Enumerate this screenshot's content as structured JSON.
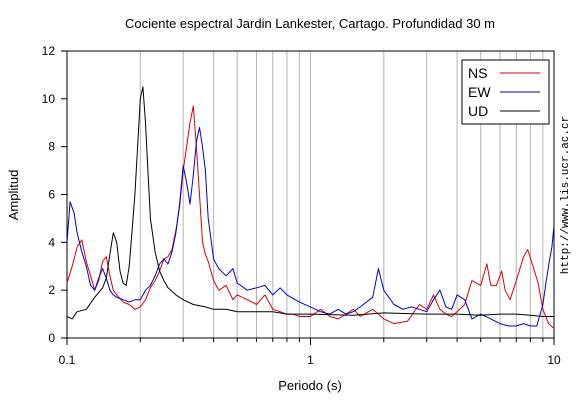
{
  "chart_data": {
    "type": "line",
    "title": "Cociente espectral Jardin Lankester, Cartago. Profundidad 30 m",
    "xlabel": "Periodo (s)",
    "ylabel": "Amplitud",
    "xscale": "log",
    "xlim": [
      0.1,
      10
    ],
    "ylim": [
      0,
      12
    ],
    "xticks": [
      0.1,
      1,
      10
    ],
    "xtick_labels": [
      "0.1",
      "1",
      "10"
    ],
    "yticks": [
      0,
      2,
      4,
      6,
      8,
      10,
      12
    ],
    "ytick_labels": [
      "0",
      "2",
      "4",
      "6",
      "8",
      "10",
      "12"
    ],
    "grid": "vertical minor/major lines on log x-axis",
    "legend_position": "top-right",
    "series": [
      {
        "name": "NS",
        "color": "#dd0000",
        "points": [
          [
            0.1,
            2.3
          ],
          [
            0.105,
            3.0
          ],
          [
            0.11,
            3.8
          ],
          [
            0.115,
            4.1
          ],
          [
            0.12,
            3.2
          ],
          [
            0.125,
            2.6
          ],
          [
            0.13,
            2.0
          ],
          [
            0.135,
            2.4
          ],
          [
            0.14,
            3.2
          ],
          [
            0.145,
            3.4
          ],
          [
            0.15,
            2.6
          ],
          [
            0.155,
            2.0
          ],
          [
            0.16,
            1.8
          ],
          [
            0.17,
            1.5
          ],
          [
            0.18,
            1.4
          ],
          [
            0.19,
            1.2
          ],
          [
            0.2,
            1.3
          ],
          [
            0.21,
            1.6
          ],
          [
            0.22,
            2.1
          ],
          [
            0.23,
            2.4
          ],
          [
            0.24,
            2.8
          ],
          [
            0.25,
            3.3
          ],
          [
            0.26,
            3.4
          ],
          [
            0.27,
            3.7
          ],
          [
            0.28,
            4.5
          ],
          [
            0.29,
            5.5
          ],
          [
            0.3,
            7.0
          ],
          [
            0.31,
            8.0
          ],
          [
            0.32,
            9.0
          ],
          [
            0.33,
            9.7
          ],
          [
            0.34,
            8.0
          ],
          [
            0.35,
            6.0
          ],
          [
            0.36,
            4.0
          ],
          [
            0.37,
            3.5
          ],
          [
            0.38,
            3.2
          ],
          [
            0.4,
            2.4
          ],
          [
            0.42,
            2.0
          ],
          [
            0.45,
            2.2
          ],
          [
            0.48,
            1.6
          ],
          [
            0.5,
            1.8
          ],
          [
            0.55,
            1.6
          ],
          [
            0.6,
            1.4
          ],
          [
            0.65,
            1.8
          ],
          [
            0.7,
            1.2
          ],
          [
            0.75,
            1.1
          ],
          [
            0.8,
            1.0
          ],
          [
            0.85,
            1.0
          ],
          [
            0.9,
            0.9
          ],
          [
            1.0,
            0.9
          ],
          [
            1.1,
            1.2
          ],
          [
            1.2,
            0.9
          ],
          [
            1.3,
            0.8
          ],
          [
            1.4,
            1.0
          ],
          [
            1.5,
            1.2
          ],
          [
            1.6,
            0.9
          ],
          [
            1.8,
            1.2
          ],
          [
            2.0,
            0.8
          ],
          [
            2.2,
            0.6
          ],
          [
            2.5,
            0.7
          ],
          [
            2.8,
            1.4
          ],
          [
            3.0,
            1.2
          ],
          [
            3.2,
            1.8
          ],
          [
            3.4,
            1.2
          ],
          [
            3.6,
            1.0
          ],
          [
            3.8,
            0.9
          ],
          [
            4.0,
            1.1
          ],
          [
            4.3,
            1.4
          ],
          [
            4.6,
            2.4
          ],
          [
            5.0,
            2.2
          ],
          [
            5.3,
            3.1
          ],
          [
            5.5,
            2.2
          ],
          [
            5.8,
            2.2
          ],
          [
            6.1,
            2.8
          ],
          [
            6.3,
            2.0
          ],
          [
            6.6,
            1.6
          ],
          [
            7.0,
            2.4
          ],
          [
            7.5,
            3.4
          ],
          [
            7.8,
            3.7
          ],
          [
            8.2,
            3.0
          ],
          [
            8.6,
            2.3
          ],
          [
            9.0,
            1.2
          ],
          [
            9.5,
            0.6
          ],
          [
            10.0,
            0.4
          ]
        ]
      },
      {
        "name": "EW",
        "color": "#0000cc",
        "points": [
          [
            0.1,
            4.0
          ],
          [
            0.103,
            5.7
          ],
          [
            0.107,
            5.2
          ],
          [
            0.11,
            4.4
          ],
          [
            0.115,
            3.6
          ],
          [
            0.12,
            3.0
          ],
          [
            0.125,
            2.2
          ],
          [
            0.13,
            2.0
          ],
          [
            0.135,
            2.5
          ],
          [
            0.14,
            2.9
          ],
          [
            0.145,
            2.5
          ],
          [
            0.15,
            2.0
          ],
          [
            0.155,
            1.8
          ],
          [
            0.16,
            1.7
          ],
          [
            0.17,
            1.6
          ],
          [
            0.18,
            1.5
          ],
          [
            0.19,
            1.6
          ],
          [
            0.2,
            1.6
          ],
          [
            0.21,
            2.0
          ],
          [
            0.22,
            2.2
          ],
          [
            0.23,
            2.6
          ],
          [
            0.24,
            3.1
          ],
          [
            0.25,
            3.3
          ],
          [
            0.26,
            3.1
          ],
          [
            0.27,
            3.6
          ],
          [
            0.28,
            4.4
          ],
          [
            0.29,
            5.6
          ],
          [
            0.3,
            7.2
          ],
          [
            0.31,
            6.5
          ],
          [
            0.32,
            5.6
          ],
          [
            0.33,
            6.8
          ],
          [
            0.34,
            8.2
          ],
          [
            0.35,
            8.8
          ],
          [
            0.36,
            8.0
          ],
          [
            0.37,
            7.0
          ],
          [
            0.38,
            5.0
          ],
          [
            0.4,
            3.3
          ],
          [
            0.42,
            2.9
          ],
          [
            0.45,
            2.6
          ],
          [
            0.48,
            2.9
          ],
          [
            0.5,
            2.3
          ],
          [
            0.55,
            2.0
          ],
          [
            0.6,
            2.1
          ],
          [
            0.65,
            2.2
          ],
          [
            0.7,
            1.8
          ],
          [
            0.75,
            2.1
          ],
          [
            0.8,
            1.8
          ],
          [
            0.9,
            1.5
          ],
          [
            1.0,
            1.3
          ],
          [
            1.1,
            1.1
          ],
          [
            1.2,
            1.0
          ],
          [
            1.3,
            1.2
          ],
          [
            1.4,
            1.0
          ],
          [
            1.5,
            1.1
          ],
          [
            1.6,
            1.3
          ],
          [
            1.8,
            1.7
          ],
          [
            1.9,
            2.9
          ],
          [
            2.0,
            2.0
          ],
          [
            2.2,
            1.4
          ],
          [
            2.4,
            1.2
          ],
          [
            2.6,
            1.3
          ],
          [
            2.8,
            1.2
          ],
          [
            3.0,
            1.1
          ],
          [
            3.2,
            1.6
          ],
          [
            3.4,
            2.0
          ],
          [
            3.6,
            1.3
          ],
          [
            3.8,
            1.2
          ],
          [
            4.0,
            1.8
          ],
          [
            4.3,
            1.6
          ],
          [
            4.6,
            0.8
          ],
          [
            5.0,
            1.0
          ],
          [
            5.5,
            0.8
          ],
          [
            6.0,
            0.6
          ],
          [
            6.5,
            0.5
          ],
          [
            7.0,
            0.5
          ],
          [
            7.5,
            0.6
          ],
          [
            8.0,
            0.5
          ],
          [
            8.5,
            0.5
          ],
          [
            9.0,
            1.4
          ],
          [
            9.3,
            2.4
          ],
          [
            9.6,
            3.3
          ],
          [
            9.8,
            3.8
          ],
          [
            10.0,
            4.7
          ]
        ]
      },
      {
        "name": "UD",
        "color": "#000000",
        "points": [
          [
            0.1,
            0.9
          ],
          [
            0.105,
            0.8
          ],
          [
            0.11,
            1.1
          ],
          [
            0.12,
            1.2
          ],
          [
            0.13,
            1.7
          ],
          [
            0.14,
            2.1
          ],
          [
            0.145,
            2.5
          ],
          [
            0.15,
            3.5
          ],
          [
            0.155,
            4.4
          ],
          [
            0.16,
            4.0
          ],
          [
            0.165,
            2.8
          ],
          [
            0.17,
            2.3
          ],
          [
            0.175,
            2.2
          ],
          [
            0.18,
            3.0
          ],
          [
            0.185,
            4.5
          ],
          [
            0.19,
            6.0
          ],
          [
            0.195,
            8.0
          ],
          [
            0.2,
            10.0
          ],
          [
            0.205,
            10.5
          ],
          [
            0.21,
            9.0
          ],
          [
            0.215,
            7.0
          ],
          [
            0.22,
            5.0
          ],
          [
            0.23,
            3.6
          ],
          [
            0.24,
            2.8
          ],
          [
            0.25,
            2.4
          ],
          [
            0.26,
            2.1
          ],
          [
            0.28,
            1.8
          ],
          [
            0.3,
            1.6
          ],
          [
            0.33,
            1.4
          ],
          [
            0.37,
            1.3
          ],
          [
            0.4,
            1.2
          ],
          [
            0.45,
            1.2
          ],
          [
            0.5,
            1.1
          ],
          [
            0.6,
            1.1
          ],
          [
            0.7,
            1.1
          ],
          [
            0.8,
            1.0
          ],
          [
            1.0,
            1.0
          ],
          [
            1.5,
            0.95
          ],
          [
            2.0,
            1.05
          ],
          [
            3.0,
            1.0
          ],
          [
            4.0,
            1.0
          ],
          [
            5.0,
            0.95
          ],
          [
            6.0,
            1.0
          ],
          [
            7.0,
            1.0
          ],
          [
            8.0,
            0.95
          ],
          [
            9.0,
            0.9
          ],
          [
            10.0,
            0.9
          ]
        ]
      }
    ]
  },
  "credit": "http://www.lis.ucr.ac.cr"
}
